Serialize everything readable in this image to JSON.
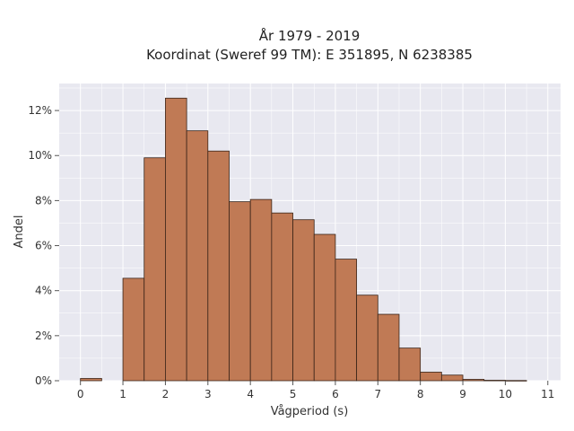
{
  "chart_data": {
    "type": "bar",
    "title": [
      "År 1979 - 2019",
      "Koordinat (Sweref 99 TM): E 351895, N 6238385"
    ],
    "xlabel": "Vågperiod (s)",
    "ylabel": "Andel",
    "bin_width": 0.5,
    "bins": [
      {
        "x0": 0.0,
        "value": 0.1
      },
      {
        "x0": 0.5,
        "value": 0.0
      },
      {
        "x0": 1.0,
        "value": 4.55
      },
      {
        "x0": 1.5,
        "value": 9.9
      },
      {
        "x0": 2.0,
        "value": 12.55
      },
      {
        "x0": 2.5,
        "value": 11.1
      },
      {
        "x0": 3.0,
        "value": 10.2
      },
      {
        "x0": 3.5,
        "value": 7.95
      },
      {
        "x0": 4.0,
        "value": 8.05
      },
      {
        "x0": 4.5,
        "value": 7.45
      },
      {
        "x0": 5.0,
        "value": 7.15
      },
      {
        "x0": 5.5,
        "value": 6.5
      },
      {
        "x0": 6.0,
        "value": 5.4
      },
      {
        "x0": 6.5,
        "value": 3.8
      },
      {
        "x0": 7.0,
        "value": 2.95
      },
      {
        "x0": 7.5,
        "value": 1.45
      },
      {
        "x0": 8.0,
        "value": 0.38
      },
      {
        "x0": 8.5,
        "value": 0.25
      },
      {
        "x0": 9.0,
        "value": 0.06
      },
      {
        "x0": 9.5,
        "value": 0.02
      },
      {
        "x0": 10.0,
        "value": 0.01
      }
    ],
    "xlim": [
      -0.5,
      11.3
    ],
    "ylim": [
      0,
      13.2
    ],
    "xticks": [
      0,
      1,
      2,
      3,
      4,
      5,
      6,
      7,
      8,
      9,
      10,
      11
    ],
    "xtick_labels": [
      "0",
      "1",
      "2",
      "3",
      "4",
      "5",
      "6",
      "7",
      "8",
      "9",
      "10",
      "11"
    ],
    "yticks": [
      0,
      2,
      4,
      6,
      8,
      10,
      12
    ],
    "ytick_labels": [
      "0%",
      "2%",
      "4%",
      "6%",
      "8%",
      "10%",
      "12%"
    ],
    "grid": true,
    "colors": {
      "bar_fill": "#c07a55",
      "bar_edge": "#3a2418",
      "plot_background": "#e8e8f0",
      "grid": "#ffffff"
    }
  }
}
